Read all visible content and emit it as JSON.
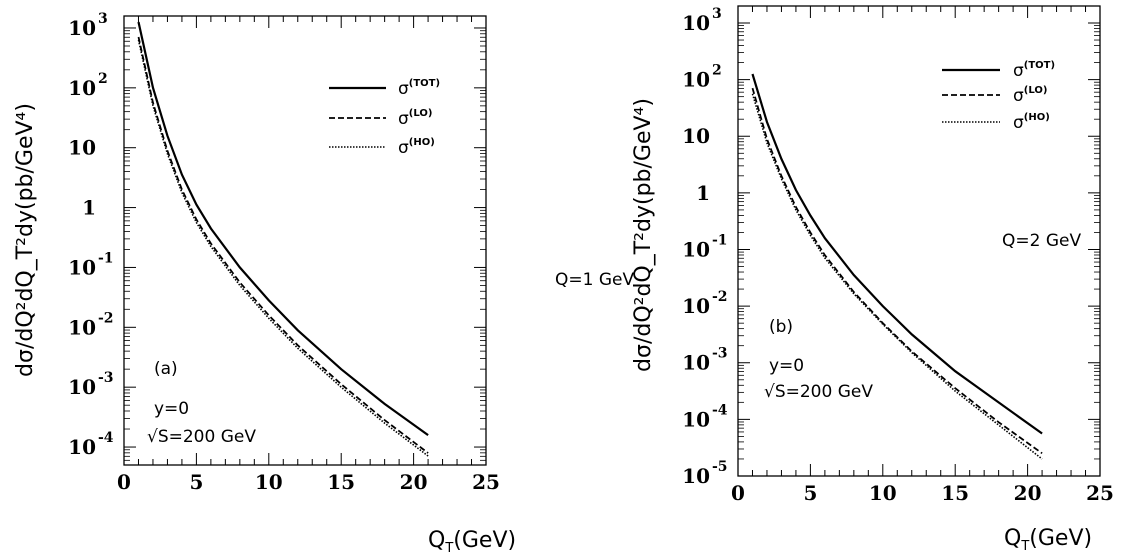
{
  "chart_data": [
    {
      "panel": "(a)",
      "type": "line",
      "xlabel": "Q_T(GeV)",
      "xlabel_main": "Q",
      "xlabel_sub": "T",
      "xlabel_rest": "(GeV)",
      "ylabel": "dσ/dQ²dQ_T²dy(pb/GeV⁴)",
      "xlim": [
        0,
        25
      ],
      "ylim_log10": [
        -4.3,
        3.2
      ],
      "y_scale": "log",
      "x_ticks": [
        0,
        5,
        10,
        15,
        20,
        25
      ],
      "y_ticks": [
        {
          "base": "10",
          "exp": "3",
          "log": 3
        },
        {
          "base": "10",
          "exp": "2",
          "log": 2
        },
        {
          "base": "10",
          "exp": "",
          "log": 1
        },
        {
          "base": "1",
          "exp": "",
          "log": 0
        },
        {
          "base": "10",
          "exp": "-1",
          "log": -1
        },
        {
          "base": "10",
          "exp": "-2",
          "log": -2
        },
        {
          "base": "10",
          "exp": "-3",
          "log": -3
        },
        {
          "base": "10",
          "exp": "-4",
          "log": -4
        }
      ],
      "annotations": {
        "q": "Q=1 GeV",
        "label": "(a)",
        "y": "y=0",
        "s": "√S=200 GeV"
      },
      "legend_position": "top-right",
      "series": [
        {
          "name": "σ",
          "sup": "(TOT)",
          "style": "solid",
          "x": [
            1,
            2,
            3,
            4,
            5,
            6,
            8,
            10,
            12,
            15,
            18,
            21
          ],
          "log10_y": [
            3.1,
            2.0,
            1.2,
            0.55,
            0.05,
            -0.35,
            -1.0,
            -1.55,
            -2.05,
            -2.7,
            -3.28,
            -3.8
          ]
        },
        {
          "name": "σ",
          "sup": "(LO)",
          "style": "dashed",
          "x": [
            1,
            2,
            3,
            4,
            5,
            6,
            8,
            10,
            12,
            15,
            18,
            21
          ],
          "log10_y": [
            2.85,
            1.75,
            0.95,
            0.3,
            -0.2,
            -0.6,
            -1.25,
            -1.8,
            -2.3,
            -2.95,
            -3.55,
            -4.1
          ]
        },
        {
          "name": "σ",
          "sup": "(HO)",
          "style": "dotted",
          "x": [
            1,
            2,
            3,
            4,
            5,
            6,
            8,
            10,
            12,
            15,
            18,
            21
          ],
          "log10_y": [
            2.8,
            1.7,
            0.9,
            0.25,
            -0.25,
            -0.65,
            -1.3,
            -1.85,
            -2.35,
            -3.0,
            -3.6,
            -4.15
          ]
        }
      ]
    },
    {
      "panel": "(b)",
      "type": "line",
      "xlabel": "Q_T(GeV)",
      "xlabel_main": "Q",
      "xlabel_sub": "T",
      "xlabel_rest": "(GeV)",
      "ylabel": "dσ/dQ²dQ_T²dy(pb/GeV⁴)",
      "xlim": [
        0,
        25
      ],
      "ylim_log10": [
        -5.0,
        3.3
      ],
      "y_scale": "log",
      "x_ticks": [
        0,
        5,
        10,
        15,
        20,
        25
      ],
      "y_ticks": [
        {
          "base": "10",
          "exp": "3",
          "log": 3
        },
        {
          "base": "10",
          "exp": "2",
          "log": 2
        },
        {
          "base": "10",
          "exp": "",
          "log": 1
        },
        {
          "base": "1",
          "exp": "",
          "log": 0
        },
        {
          "base": "10",
          "exp": "-1",
          "log": -1
        },
        {
          "base": "10",
          "exp": "-2",
          "log": -2
        },
        {
          "base": "10",
          "exp": "-3",
          "log": -3
        },
        {
          "base": "10",
          "exp": "-4",
          "log": -4
        },
        {
          "base": "10",
          "exp": "-5",
          "log": -5
        }
      ],
      "annotations": {
        "q": "Q=2 GeV",
        "label": "(b)",
        "y": "y=0",
        "s": "√S=200 GeV"
      },
      "legend_position": "top-right",
      "series": [
        {
          "name": "σ",
          "sup": "(TOT)",
          "style": "solid",
          "x": [
            1,
            2,
            3,
            4,
            5,
            6,
            8,
            10,
            12,
            15,
            18,
            21
          ],
          "log10_y": [
            2.1,
            1.25,
            0.6,
            0.05,
            -0.4,
            -0.8,
            -1.45,
            -2.0,
            -2.5,
            -3.15,
            -3.7,
            -4.25
          ]
        },
        {
          "name": "σ",
          "sup": "(LO)",
          "style": "dashed",
          "x": [
            1,
            2,
            3,
            4,
            5,
            6,
            8,
            10,
            12,
            15,
            18,
            21
          ],
          "log10_y": [
            1.85,
            0.95,
            0.3,
            -0.25,
            -0.7,
            -1.1,
            -1.75,
            -2.3,
            -2.8,
            -3.45,
            -4.05,
            -4.6
          ]
        },
        {
          "name": "σ",
          "sup": "(HO)",
          "style": "dotted",
          "x": [
            1,
            2,
            3,
            4,
            5,
            6,
            8,
            10,
            12,
            15,
            18,
            21
          ],
          "log10_y": [
            1.75,
            0.88,
            0.25,
            -0.3,
            -0.75,
            -1.15,
            -1.78,
            -2.32,
            -2.82,
            -3.5,
            -4.1,
            -4.7
          ]
        }
      ]
    }
  ]
}
